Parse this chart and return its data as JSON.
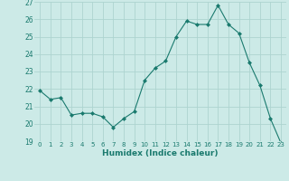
{
  "x": [
    0,
    1,
    2,
    3,
    4,
    5,
    6,
    7,
    8,
    9,
    10,
    11,
    12,
    13,
    14,
    15,
    16,
    17,
    18,
    19,
    20,
    21,
    22,
    23
  ],
  "y": [
    21.9,
    21.4,
    21.5,
    20.5,
    20.6,
    20.6,
    20.4,
    19.8,
    20.3,
    20.7,
    22.5,
    23.2,
    23.6,
    25.0,
    25.9,
    25.7,
    25.7,
    26.8,
    25.7,
    25.2,
    23.5,
    22.2,
    20.3,
    18.9
  ],
  "line_color": "#1a7a6e",
  "marker": "D",
  "marker_size": 2,
  "bg_color": "#cceae7",
  "grid_color": "#add4d0",
  "xlabel": "Humidex (Indice chaleur)",
  "ylim": [
    19,
    27
  ],
  "xlim": [
    -0.5,
    23.5
  ],
  "yticks": [
    19,
    20,
    21,
    22,
    23,
    24,
    25,
    26,
    27
  ],
  "xticks": [
    0,
    1,
    2,
    3,
    4,
    5,
    6,
    7,
    8,
    9,
    10,
    11,
    12,
    13,
    14,
    15,
    16,
    17,
    18,
    19,
    20,
    21,
    22,
    23
  ]
}
